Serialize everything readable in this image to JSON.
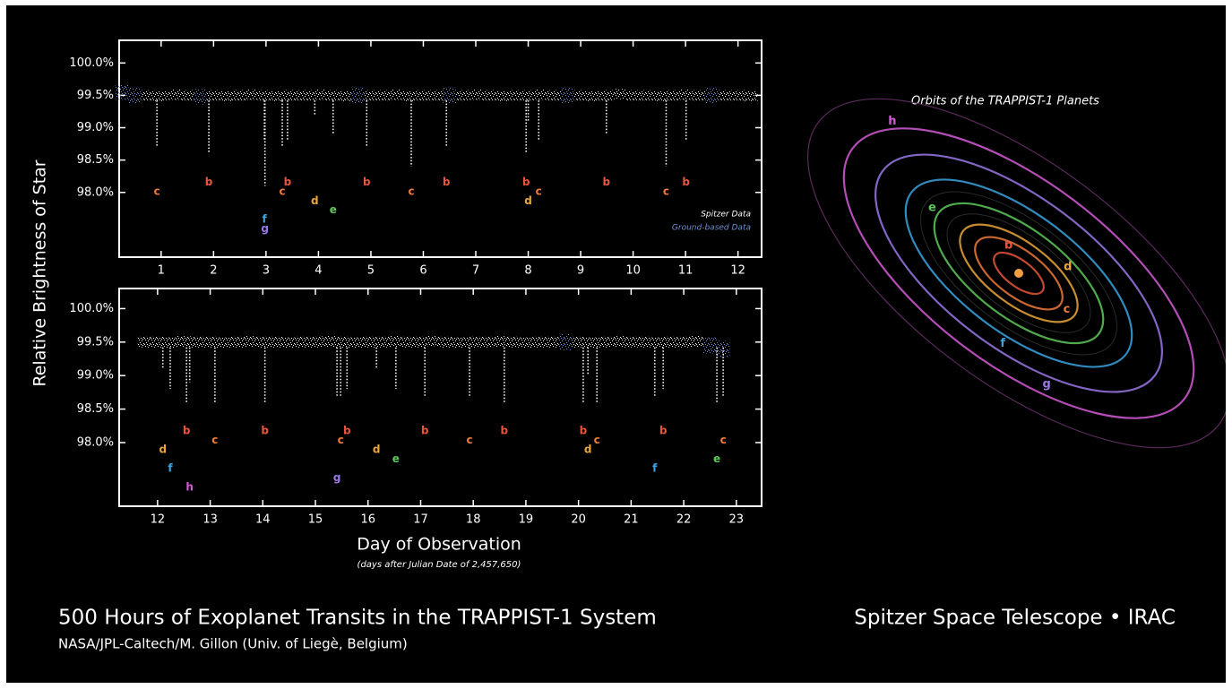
{
  "title": "500 Hours of Exoplanet Transits in the TRAPPIST-1 System",
  "credit": "NASA/JPL-Caltech/M. Gillon (Univ. of Liegè, Belgium)",
  "instrument": "Spitzer Space Telescope • IRAC",
  "ylabel": "Relative Brightness of Star",
  "xlabel": "Day of Observation",
  "xlabel_note": "(days after Julian Date of 2,457,650)",
  "orbits": {
    "title": "Orbits of the TRAPPIST-1 Planets",
    "planets": [
      {
        "label": "b",
        "color": "#e8553d"
      },
      {
        "label": "c",
        "color": "#ef7a3a"
      },
      {
        "label": "d",
        "color": "#e9a63a"
      },
      {
        "label": "e",
        "color": "#5ec95a"
      },
      {
        "label": "f",
        "color": "#3aa3e0"
      },
      {
        "label": "g",
        "color": "#9a78e6"
      },
      {
        "label": "h",
        "color": "#d35bd6"
      }
    ]
  },
  "chart_data": [
    {
      "type": "scatter",
      "xlim": [
        0.2,
        12.45
      ],
      "ylim": [
        97.0,
        100.35
      ],
      "xticks": [
        1,
        2,
        3,
        4,
        5,
        6,
        7,
        8,
        9,
        10,
        11,
        12
      ],
      "yticks": [
        {
          "value": 100.0,
          "label": "100.0%"
        },
        {
          "value": 99.5,
          "label": "99.5%"
        },
        {
          "value": 99.0,
          "label": "99.0%"
        },
        {
          "value": 98.5,
          "label": "98.5%"
        },
        {
          "value": 98.0,
          "label": "98.0%"
        }
      ],
      "legend": "lower right",
      "series": [
        {
          "name": "Spitzer Data",
          "color": "#ffffff",
          "spread": 0.08,
          "x": [
            0.75,
            1.0,
            1.25,
            1.5,
            2.0,
            2.25,
            2.5,
            2.75,
            3.0,
            3.25,
            3.5,
            3.75,
            4.0,
            4.25,
            4.5,
            5.0,
            5.25,
            5.5,
            5.75,
            6.0,
            6.25,
            6.75,
            7.0,
            7.25,
            7.5,
            7.75,
            8.0,
            8.25,
            8.5,
            9.0,
            9.25,
            9.5,
            9.75,
            10.0,
            10.25,
            10.5,
            10.75,
            11.0,
            11.25,
            11.75,
            12.0,
            12.25
          ],
          "values": [
            99.5,
            99.49,
            99.51,
            99.5,
            99.5,
            99.49,
            99.5,
            99.51,
            99.5,
            99.49,
            99.5,
            99.5,
            99.51,
            99.5,
            99.49,
            99.5,
            99.5,
            99.51,
            99.49,
            99.5,
            99.5,
            99.5,
            99.51,
            99.5,
            99.49,
            99.5,
            99.5,
            99.51,
            99.5,
            99.5,
            99.49,
            99.5,
            99.52,
            99.5,
            99.5,
            99.49,
            99.5,
            99.51,
            99.5,
            99.5,
            99.5,
            99.49
          ]
        },
        {
          "name": "Ground-based Data",
          "color": "#6f8fd0",
          "spread": 0.12,
          "x": [
            0.25,
            0.5,
            1.75,
            4.75,
            6.5,
            8.75,
            11.5
          ],
          "values": [
            99.55,
            99.5,
            99.48,
            99.5,
            99.5,
            99.5,
            99.5
          ]
        }
      ],
      "transits": [
        {
          "planet": "c",
          "x": 0.92,
          "depth": 98.7
        },
        {
          "planet": "b",
          "x": 1.91,
          "depth": 98.6
        },
        {
          "planet": "f",
          "x": 2.97,
          "depth": 98.8
        },
        {
          "planet": "g",
          "x": 2.98,
          "depth": 98.1
        },
        {
          "planet": "c",
          "x": 3.31,
          "depth": 98.7
        },
        {
          "planet": "b",
          "x": 3.41,
          "depth": 98.8
        },
        {
          "planet": "d",
          "x": 3.93,
          "depth": 99.2
        },
        {
          "planet": "e",
          "x": 4.28,
          "depth": 98.9
        },
        {
          "planet": "b",
          "x": 4.92,
          "depth": 98.7
        },
        {
          "planet": "c",
          "x": 5.77,
          "depth": 98.4
        },
        {
          "planet": "b",
          "x": 6.44,
          "depth": 98.7
        },
        {
          "planet": "b",
          "x": 7.96,
          "depth": 98.6
        },
        {
          "planet": "d",
          "x": 8.0,
          "depth": 99.1
        },
        {
          "planet": "c",
          "x": 8.2,
          "depth": 98.8
        },
        {
          "planet": "b",
          "x": 9.49,
          "depth": 98.9
        },
        {
          "planet": "c",
          "x": 10.63,
          "depth": 98.4
        },
        {
          "planet": "b",
          "x": 11.01,
          "depth": 98.8
        }
      ]
    },
    {
      "type": "scatter",
      "xlim": [
        11.27,
        23.48
      ],
      "ylim": [
        97.05,
        100.3
      ],
      "xticks": [
        12,
        13,
        14,
        15,
        16,
        17,
        18,
        19,
        20,
        21,
        22,
        23
      ],
      "yticks": [
        {
          "value": 100.0,
          "label": "100.0%"
        },
        {
          "value": 99.5,
          "label": "99.5%"
        },
        {
          "value": 99.0,
          "label": "99.0%"
        },
        {
          "value": 98.5,
          "label": "98.5%"
        },
        {
          "value": 98.0,
          "label": "98.0%"
        }
      ],
      "series": [
        {
          "color": "#ffffff",
          "spread": 0.08,
          "x": [
            11.75,
            12.0,
            12.25,
            12.5,
            12.75,
            13.0,
            13.25,
            13.5,
            13.75,
            14.0,
            14.25,
            14.5,
            14.75,
            15.0,
            15.25,
            15.5,
            15.75,
            16.0,
            16.25,
            16.5,
            16.75,
            17.0,
            17.25,
            17.5,
            17.75,
            18.0,
            18.25,
            18.5,
            18.75,
            19.0,
            19.25,
            19.5,
            20.0,
            20.25,
            20.5,
            20.75,
            21.0,
            21.25,
            21.5,
            21.75,
            22.0,
            22.25
          ],
          "values": [
            99.5,
            99.5,
            99.49,
            99.51,
            99.5,
            99.5,
            99.49,
            99.5,
            99.51,
            99.5,
            99.5,
            99.49,
            99.5,
            99.5,
            99.51,
            99.5,
            99.49,
            99.5,
            99.5,
            99.51,
            99.5,
            99.5,
            99.52,
            99.5,
            99.49,
            99.5,
            99.5,
            99.51,
            99.5,
            99.49,
            99.5,
            99.5,
            99.5,
            99.49,
            99.5,
            99.51,
            99.5,
            99.5,
            99.49,
            99.5,
            99.5,
            99.51
          ]
        },
        {
          "color": "#6f8fd0",
          "spread": 0.12,
          "x": [
            19.75,
            22.5,
            22.75
          ],
          "values": [
            99.5,
            99.45,
            99.4
          ]
        }
      ],
      "transits": [
        {
          "planet": "d",
          "x": 12.1,
          "depth": 99.1
        },
        {
          "planet": "f",
          "x": 12.24,
          "depth": 98.8
        },
        {
          "planet": "b",
          "x": 12.55,
          "depth": 98.6
        },
        {
          "planet": "h",
          "x": 12.61,
          "depth": 98.9
        },
        {
          "planet": "c",
          "x": 13.09,
          "depth": 98.6
        },
        {
          "planet": "b",
          "x": 14.04,
          "depth": 98.6
        },
        {
          "planet": "g",
          "x": 15.41,
          "depth": 98.7
        },
        {
          "planet": "c",
          "x": 15.48,
          "depth": 98.7
        },
        {
          "planet": "b",
          "x": 15.6,
          "depth": 98.8
        },
        {
          "planet": "d",
          "x": 16.16,
          "depth": 99.1
        },
        {
          "planet": "e",
          "x": 16.53,
          "depth": 98.8
        },
        {
          "planet": "b",
          "x": 17.08,
          "depth": 98.7
        },
        {
          "planet": "c",
          "x": 17.93,
          "depth": 98.7
        },
        {
          "planet": "b",
          "x": 18.59,
          "depth": 98.6
        },
        {
          "planet": "b",
          "x": 20.09,
          "depth": 98.6
        },
        {
          "planet": "d",
          "x": 20.18,
          "depth": 99.0
        },
        {
          "planet": "c",
          "x": 20.35,
          "depth": 98.6
        },
        {
          "planet": "f",
          "x": 21.45,
          "depth": 98.7
        },
        {
          "planet": "b",
          "x": 21.61,
          "depth": 98.8
        },
        {
          "planet": "e",
          "x": 22.63,
          "depth": 98.6
        },
        {
          "planet": "c",
          "x": 22.75,
          "depth": 98.7
        }
      ]
    }
  ]
}
